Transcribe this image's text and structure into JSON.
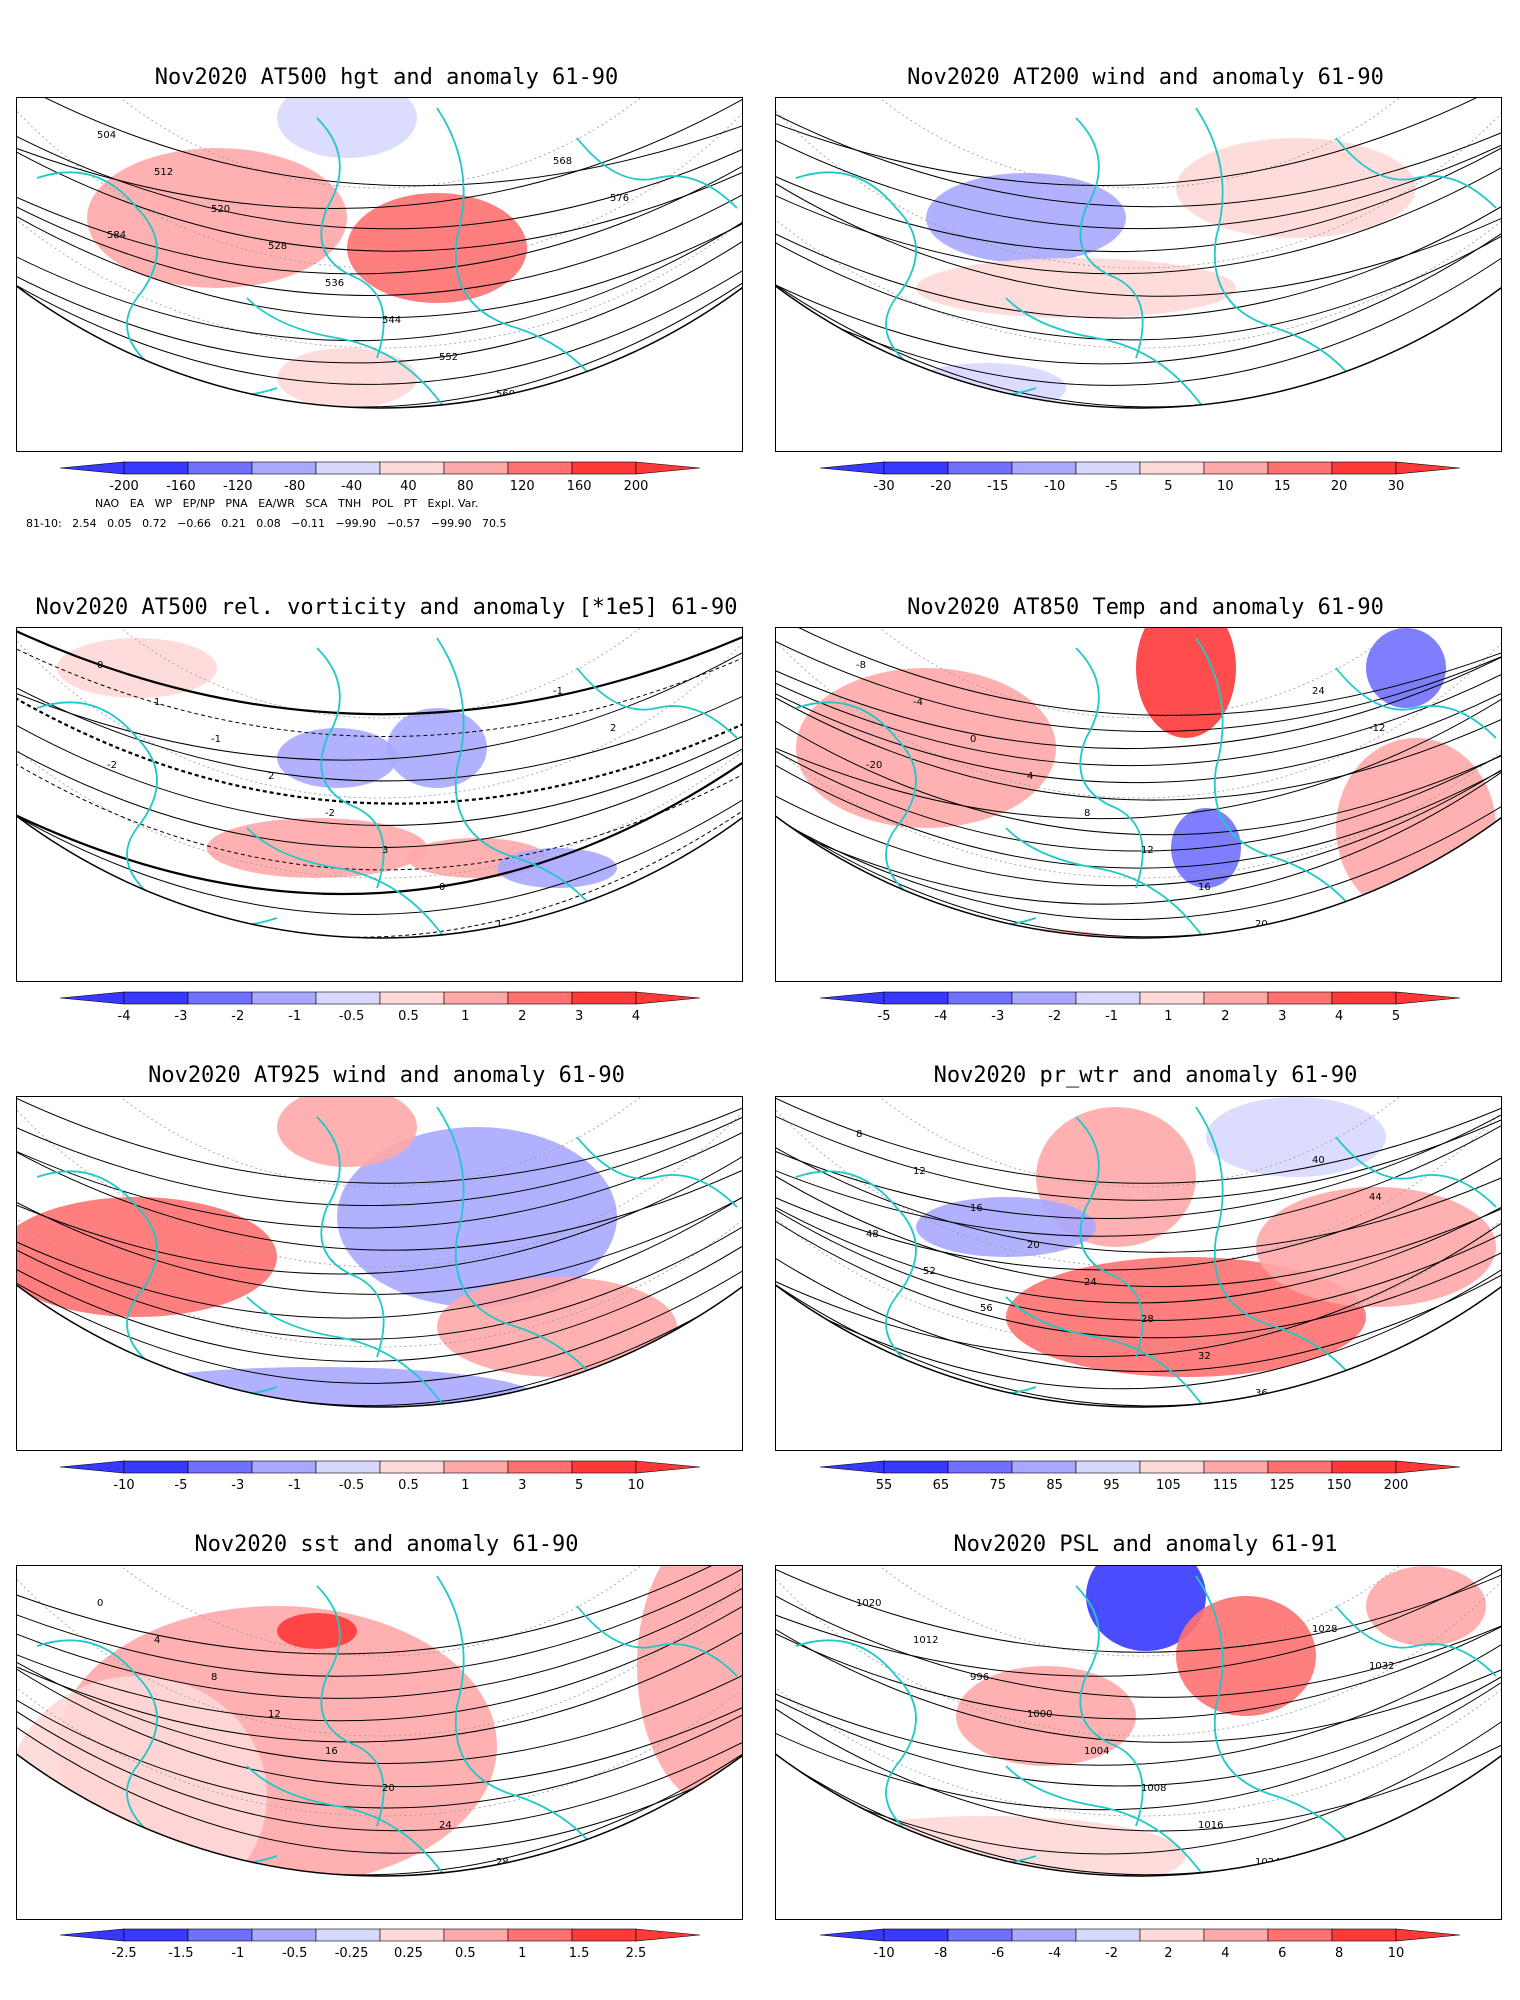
{
  "colors": {
    "blue3": "#3838ff",
    "blue2": "#7070ff",
    "blue1": "#a8a8ff",
    "blue0": "#d8d8ff",
    "red0": "#ffd8d8",
    "red1": "#ffa8a8",
    "red2": "#ff7070",
    "red3": "#ff3838",
    "coast": "#20c8c8",
    "contour": "#000000"
  },
  "panels": [
    {
      "title": "Nov2020 AT500 hgt and anomaly 61-90",
      "colorbar": [
        "-200",
        "-160",
        "-120",
        "-80",
        "-40",
        "40",
        "80",
        "120",
        "160",
        "200"
      ],
      "contour_labels": [
        "504",
        "512",
        "520",
        "528",
        "536",
        "544",
        "552",
        "560",
        "568",
        "576",
        "584"
      ]
    },
    {
      "title": "Nov2020 AT200 wind and anomaly 61-90",
      "colorbar": [
        "-30",
        "-20",
        "-15",
        "-10",
        "-5",
        "5",
        "10",
        "15",
        "20",
        "30"
      ],
      "contour_labels": []
    },
    {
      "title": "Nov2020 AT500 rel. vorticity and anomaly [*1e5] 61-90",
      "colorbar": [
        "-4",
        "-3",
        "-2",
        "-1",
        "-0.5",
        "0.5",
        "1",
        "2",
        "3",
        "4"
      ],
      "contour_labels": [
        "0",
        "1",
        "-1",
        "2",
        "-2",
        "3",
        "0",
        "1",
        "-1",
        "2",
        "-2"
      ]
    },
    {
      "title": "Nov2020 AT850 Temp and anomaly 61-90",
      "colorbar": [
        "-5",
        "-4",
        "-3",
        "-2",
        "-1",
        "1",
        "2",
        "3",
        "4",
        "5"
      ],
      "contour_labels": [
        "-8",
        "-4",
        "0",
        "4",
        "8",
        "12",
        "16",
        "20",
        "24",
        "-12",
        "-20"
      ]
    },
    {
      "title": "Nov2020 AT925 wind and anomaly 61-90",
      "colorbar": [
        "-10",
        "-5",
        "-3",
        "-1",
        "-0.5",
        "0.5",
        "1",
        "3",
        "5",
        "10"
      ],
      "contour_labels": []
    },
    {
      "title": "Nov2020 pr_wtr and anomaly 61-90",
      "colorbar": [
        "55",
        "65",
        "75",
        "85",
        "95",
        "105",
        "115",
        "125",
        "150",
        "200"
      ],
      "contour_labels": [
        "8",
        "12",
        "16",
        "20",
        "24",
        "28",
        "32",
        "36",
        "40",
        "44",
        "48",
        "52",
        "56"
      ]
    },
    {
      "title": "Nov2020 sst and anomaly 61-90",
      "colorbar": [
        "-2.5",
        "-1.5",
        "-1",
        "-0.5",
        "-0.25",
        "0.25",
        "0.5",
        "1",
        "1.5",
        "2.5"
      ],
      "contour_labels": [
        "0",
        "4",
        "8",
        "12",
        "16",
        "20",
        "24",
        "28"
      ]
    },
    {
      "title": "Nov2020 PSL and anomaly 61-91",
      "colorbar": [
        "-10",
        "-8",
        "-6",
        "-4",
        "-2",
        "2",
        "4",
        "6",
        "8",
        "10"
      ],
      "contour_labels": [
        "1020",
        "1012",
        "996",
        "1000",
        "1004",
        "1008",
        "1016",
        "1024",
        "1028",
        "1032"
      ]
    }
  ],
  "indices": {
    "names": [
      "NAO",
      "EA",
      "WP",
      "EP/NP",
      "PNA",
      "EA/WR",
      "SCA",
      "TNH",
      "POL",
      "PT",
      "Expl. Var."
    ],
    "row_label": "81-10:",
    "values": [
      "2.54",
      "0.05",
      "0.72",
      "−0.66",
      "0.21",
      "0.08",
      "−0.11",
      "−99.90",
      "−0.57",
      "−99.90",
      "70.5"
    ]
  }
}
